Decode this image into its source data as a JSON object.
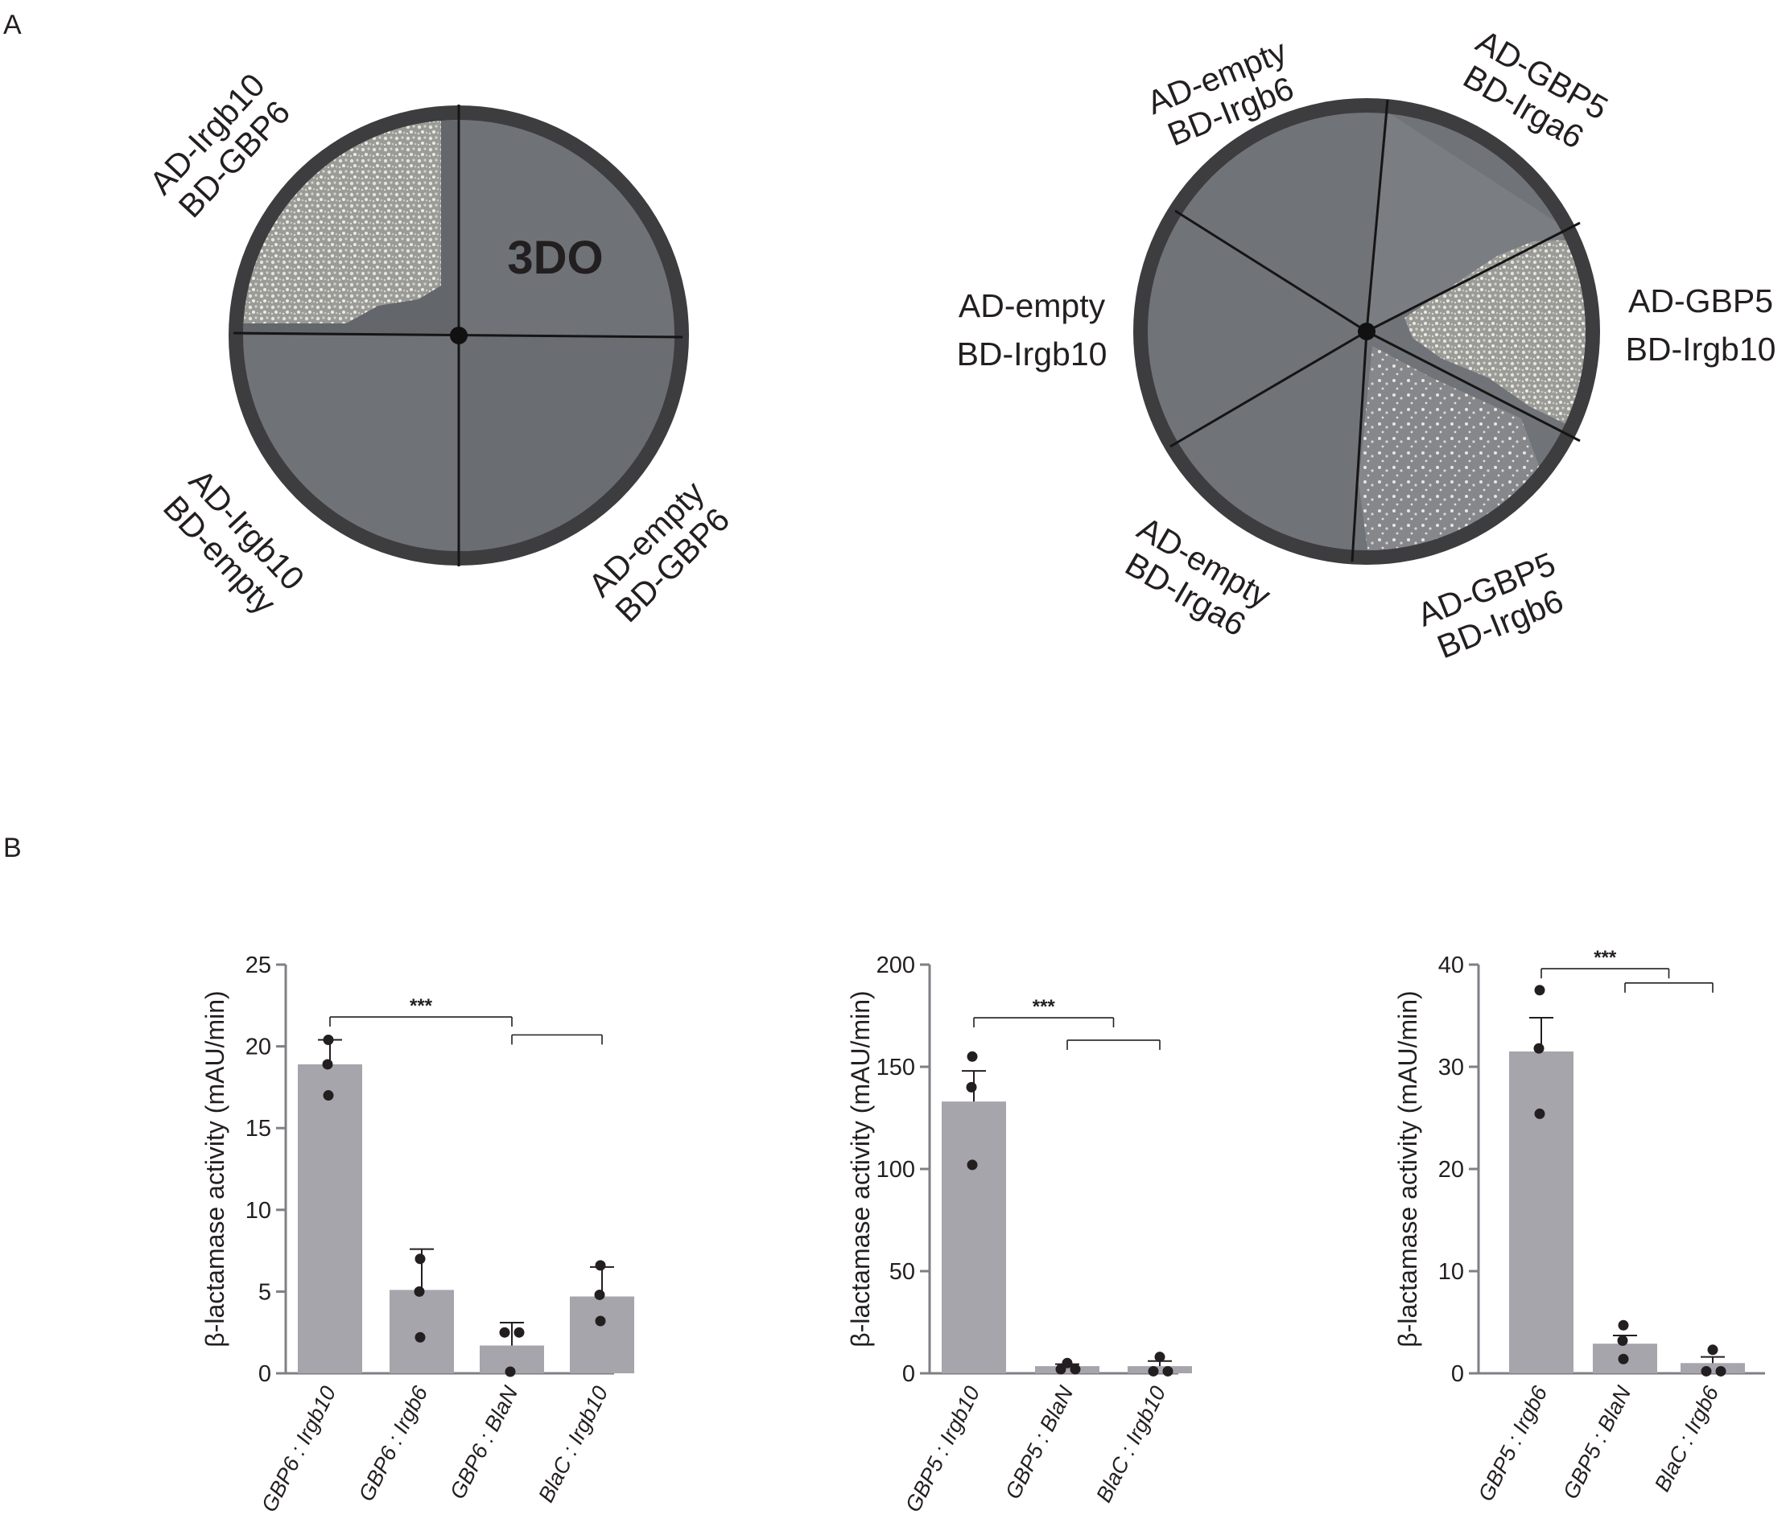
{
  "panel_a": {
    "letter": "A",
    "plate_left": {
      "tag": "3DO",
      "labels": [
        [
          "AD-Irgb10",
          "BD-GBP6"
        ],
        [
          "AD-Irgb10",
          "BD-empty"
        ],
        [
          "AD-empty",
          "BD-GBP6"
        ]
      ]
    },
    "plate_right": {
      "labels": [
        [
          "AD-empty",
          "BD-Irgb6"
        ],
        [
          "AD-GBP5",
          "BD-Irga6"
        ],
        [
          "AD-empty",
          "BD-Irgb10"
        ],
        [
          "AD-GBP5",
          "BD-Irgb10"
        ],
        [
          "AD-empty",
          "BD-Irga6"
        ],
        [
          "AD-GBP5",
          "BD-Irgb6"
        ]
      ]
    }
  },
  "panel_b": {
    "letter": "B"
  },
  "colors": {
    "bar": "#a6a5ab",
    "axis": "#7f7f84",
    "ink": "#231f20",
    "plate_rim": "#3d3d3f",
    "plate_agar": "#6f7277",
    "colony": "#d9d8d0"
  },
  "chart_data": [
    {
      "type": "bar",
      "ylabel": "β-lactamase activity (mAU/min)",
      "ylim": [
        0,
        25
      ],
      "yticks": [
        0,
        5,
        10,
        15,
        20,
        25
      ],
      "categories": [
        "GBP6 : Irgb10",
        "GBP6 : Irgb6",
        "GBP6 : BlaN",
        "BlaC : Irgb10"
      ],
      "values": [
        18.9,
        5.1,
        1.7,
        4.7
      ],
      "errors": [
        1.5,
        2.5,
        1.4,
        1.8
      ],
      "points": [
        [
          20.4,
          18.9,
          17.0
        ],
        [
          7.0,
          5.0,
          2.2
        ],
        [
          2.5,
          2.5,
          0.1
        ],
        [
          6.6,
          4.8,
          3.2
        ]
      ],
      "significance": [
        {
          "label": "***",
          "from": 0,
          "to": 2,
          "y": 21.8
        },
        {
          "label": "",
          "from": 2,
          "to": 3,
          "y": 20.7
        }
      ]
    },
    {
      "type": "bar",
      "ylabel": "β-lactamase activity (mAU/min)",
      "ylim": [
        0,
        200
      ],
      "yticks": [
        0,
        50,
        100,
        150,
        200
      ],
      "categories": [
        "GBP5 : Irgb10",
        "GBP5 : BlaN",
        "BlaC : Irgb10"
      ],
      "values": [
        133,
        3.5,
        3.5
      ],
      "errors": [
        15,
        1,
        2.5
      ],
      "points": [
        [
          155,
          140,
          102
        ],
        [
          5,
          2,
          2
        ],
        [
          8,
          1,
          1
        ]
      ],
      "significance": [
        {
          "label": "***",
          "from": 0,
          "to": 1.5,
          "y": 174
        },
        {
          "label": "",
          "from": 1,
          "to": 2,
          "y": 163
        }
      ]
    },
    {
      "type": "bar",
      "ylabel": "β-lactamase activity (mAU/min)",
      "ylim": [
        0,
        40
      ],
      "yticks": [
        0,
        10,
        20,
        30,
        40
      ],
      "categories": [
        "GBP5 : Irgb6",
        "GBP5 : BlaN",
        "BlaC : Irgb6"
      ],
      "values": [
        31.5,
        2.9,
        1.0
      ],
      "errors": [
        3.3,
        0.8,
        0.6
      ],
      "points": [
        [
          37.5,
          31.8,
          25.4
        ],
        [
          4.7,
          3.2,
          1.4
        ],
        [
          2.3,
          0.2,
          0.2
        ]
      ],
      "significance": [
        {
          "label": "***",
          "from": 0,
          "to": 1.5,
          "y": 39.6
        },
        {
          "label": "",
          "from": 1,
          "to": 2,
          "y": 38.2
        }
      ]
    }
  ]
}
